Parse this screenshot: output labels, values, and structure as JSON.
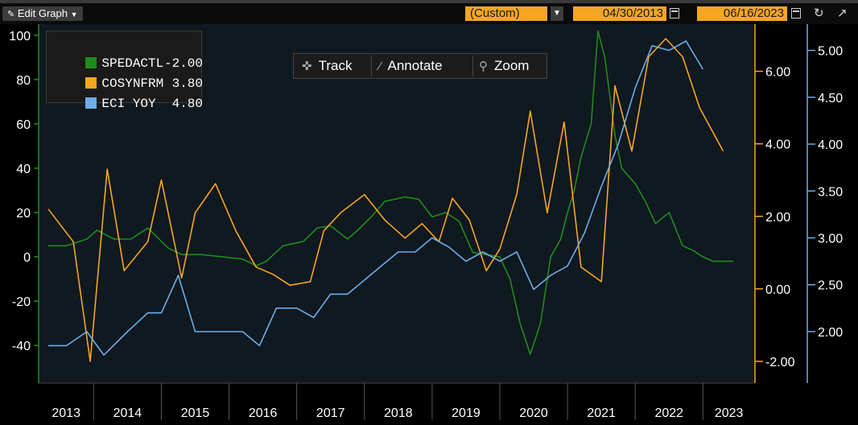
{
  "toolbar": {
    "edit_label": "Edit Graph",
    "period": "(Custom)",
    "start_date": "04/30/2013",
    "end_date": "06/16/2023"
  },
  "tools": {
    "track": "Track",
    "annotate": "Annotate",
    "zoom": "Zoom"
  },
  "colors": {
    "spedactl": "#1e8c1e",
    "cosynfrm": "#f5a623",
    "eci": "#6aaee8"
  },
  "chart_data": {
    "type": "line",
    "x_range": [
      "2013-04",
      "2023-06"
    ],
    "x_ticks": [
      "2013",
      "2014",
      "2015",
      "2016",
      "2017",
      "2018",
      "2019",
      "2020",
      "2021",
      "2022",
      "2023"
    ],
    "grid": false,
    "legend_position": "top-left",
    "legend": [
      {
        "name": "SPEDACTL",
        "last": "-2.00"
      },
      {
        "name": "COSYNFRM",
        "last": "3.80"
      },
      {
        "name": "ECI YOY",
        "last": "4.80"
      }
    ],
    "axes": {
      "left": {
        "series": "SPEDACTL",
        "range": [
          -57,
          105
        ],
        "ticks": [
          "100",
          "80",
          "60",
          "40",
          "20",
          "0",
          "-20",
          "-40"
        ],
        "tick_values": [
          100,
          80,
          60,
          40,
          20,
          0,
          -20,
          -40
        ]
      },
      "right1": {
        "series": "COSYNFRM",
        "range": [
          -2.6,
          7.3
        ],
        "ticks": [
          "6.00",
          "4.00",
          "2.00",
          "0.00",
          "-2.00"
        ],
        "tick_values": [
          6,
          4,
          2,
          0,
          -2
        ]
      },
      "right2": {
        "series": "ECI YOY",
        "range": [
          1.45,
          5.28
        ],
        "ticks": [
          "5.00",
          "4.50",
          "4.00",
          "3.50",
          "3.00",
          "2.50",
          "2.00"
        ],
        "tick_values": [
          5,
          4.5,
          4,
          3.5,
          3,
          2.5,
          2
        ]
      }
    },
    "series": [
      {
        "name": "SPEDACTL",
        "axis": "left",
        "points": [
          [
            2013.33,
            5
          ],
          [
            2013.6,
            5
          ],
          [
            2013.9,
            8
          ],
          [
            2014.05,
            12
          ],
          [
            2014.3,
            8
          ],
          [
            2014.55,
            8
          ],
          [
            2014.8,
            13
          ],
          [
            2015.1,
            4
          ],
          [
            2015.3,
            1
          ],
          [
            2015.6,
            1
          ],
          [
            2015.9,
            0
          ],
          [
            2016.2,
            -1
          ],
          [
            2016.4,
            -4
          ],
          [
            2016.55,
            -2
          ],
          [
            2016.8,
            5
          ],
          [
            2017.1,
            7
          ],
          [
            2017.3,
            13
          ],
          [
            2017.5,
            14
          ],
          [
            2017.75,
            8
          ],
          [
            2017.9,
            12
          ],
          [
            2018.1,
            18
          ],
          [
            2018.3,
            25
          ],
          [
            2018.6,
            27
          ],
          [
            2018.8,
            26
          ],
          [
            2019.0,
            18
          ],
          [
            2019.2,
            20
          ],
          [
            2019.4,
            16
          ],
          [
            2019.6,
            2
          ],
          [
            2019.8,
            1
          ],
          [
            2020.0,
            0
          ],
          [
            2020.15,
            -10
          ],
          [
            2020.3,
            -30
          ],
          [
            2020.45,
            -44
          ],
          [
            2020.6,
            -30
          ],
          [
            2020.75,
            0
          ],
          [
            2020.9,
            8
          ],
          [
            2021.0,
            20
          ],
          [
            2021.1,
            30
          ],
          [
            2021.2,
            45
          ],
          [
            2021.35,
            60
          ],
          [
            2021.45,
            102
          ],
          [
            2021.55,
            90
          ],
          [
            2021.7,
            55
          ],
          [
            2021.8,
            40
          ],
          [
            2022.0,
            33
          ],
          [
            2022.15,
            25
          ],
          [
            2022.3,
            15
          ],
          [
            2022.5,
            20
          ],
          [
            2022.7,
            5
          ],
          [
            2022.85,
            3
          ],
          [
            2023.0,
            0
          ],
          [
            2023.15,
            -2
          ],
          [
            2023.3,
            -2
          ],
          [
            2023.45,
            -2
          ]
        ]
      },
      {
        "name": "COSYNFRM",
        "axis": "right1",
        "points": [
          [
            2013.33,
            2.2
          ],
          [
            2013.7,
            1.3
          ],
          [
            2013.95,
            -2.0
          ],
          [
            2014.2,
            3.3
          ],
          [
            2014.45,
            0.5
          ],
          [
            2014.8,
            1.3
          ],
          [
            2015.0,
            3.0
          ],
          [
            2015.3,
            0.3
          ],
          [
            2015.5,
            2.1
          ],
          [
            2015.8,
            2.9
          ],
          [
            2016.1,
            1.6
          ],
          [
            2016.4,
            0.6
          ],
          [
            2016.65,
            0.4
          ],
          [
            2016.9,
            0.1
          ],
          [
            2017.2,
            0.2
          ],
          [
            2017.4,
            1.6
          ],
          [
            2017.65,
            2.1
          ],
          [
            2018.0,
            2.6
          ],
          [
            2018.3,
            1.9
          ],
          [
            2018.6,
            1.4
          ],
          [
            2018.85,
            1.8
          ],
          [
            2019.1,
            1.3
          ],
          [
            2019.3,
            2.5
          ],
          [
            2019.55,
            1.9
          ],
          [
            2019.8,
            0.5
          ],
          [
            2020.0,
            1.1
          ],
          [
            2020.25,
            2.6
          ],
          [
            2020.45,
            4.9
          ],
          [
            2020.7,
            2.1
          ],
          [
            2020.95,
            4.6
          ],
          [
            2021.2,
            0.6
          ],
          [
            2021.5,
            0.2
          ],
          [
            2021.7,
            5.6
          ],
          [
            2021.95,
            3.8
          ],
          [
            2022.2,
            6.4
          ],
          [
            2022.45,
            6.9
          ],
          [
            2022.7,
            6.4
          ],
          [
            2022.95,
            5.0
          ],
          [
            2023.3,
            3.8
          ]
        ]
      },
      {
        "name": "ECI YOY",
        "axis": "right2",
        "points": [
          [
            2013.33,
            1.85
          ],
          [
            2013.6,
            1.85
          ],
          [
            2013.9,
            2.0
          ],
          [
            2014.15,
            1.75
          ],
          [
            2014.5,
            2.0
          ],
          [
            2014.8,
            2.2
          ],
          [
            2015.0,
            2.2
          ],
          [
            2015.25,
            2.6
          ],
          [
            2015.5,
            2.0
          ],
          [
            2015.75,
            2.0
          ],
          [
            2016.0,
            2.0
          ],
          [
            2016.2,
            2.0
          ],
          [
            2016.45,
            1.85
          ],
          [
            2016.7,
            2.25
          ],
          [
            2017.0,
            2.25
          ],
          [
            2017.25,
            2.15
          ],
          [
            2017.5,
            2.4
          ],
          [
            2017.75,
            2.4
          ],
          [
            2018.0,
            2.55
          ],
          [
            2018.25,
            2.7
          ],
          [
            2018.5,
            2.85
          ],
          [
            2018.75,
            2.85
          ],
          [
            2019.0,
            3.0
          ],
          [
            2019.25,
            2.9
          ],
          [
            2019.5,
            2.75
          ],
          [
            2019.75,
            2.85
          ],
          [
            2020.0,
            2.75
          ],
          [
            2020.25,
            2.85
          ],
          [
            2020.5,
            2.45
          ],
          [
            2020.75,
            2.6
          ],
          [
            2021.0,
            2.7
          ],
          [
            2021.25,
            3.05
          ],
          [
            2021.5,
            3.55
          ],
          [
            2021.75,
            4.0
          ],
          [
            2022.0,
            4.6
          ],
          [
            2022.25,
            5.05
          ],
          [
            2022.5,
            5.0
          ],
          [
            2022.75,
            5.1
          ],
          [
            2023.0,
            4.8
          ]
        ]
      }
    ]
  }
}
